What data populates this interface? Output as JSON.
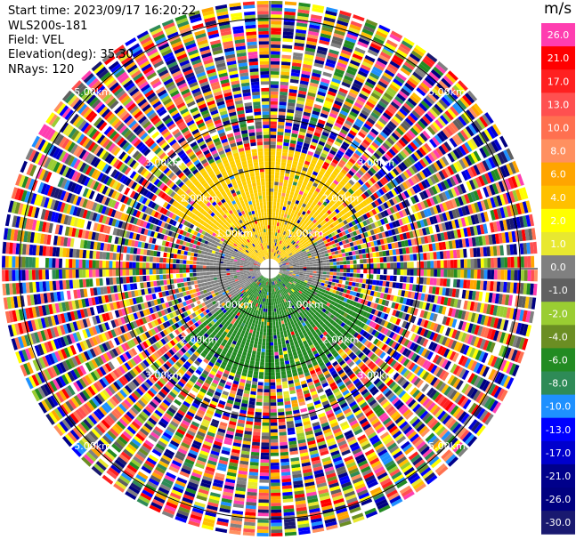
{
  "header": {
    "start_time": "Start time: 2023/09/17 16:20:22",
    "instrument": "WLS200s-181",
    "field": "Field: VEL",
    "elevation": "Elevation(deg): 35.30",
    "nrays": "NRays: 120"
  },
  "chart_data": {
    "type": "heatmap",
    "projection": "polar-ppi",
    "field": "VEL",
    "units": "m/s",
    "n_rays": 120,
    "elevation_deg": 35.3,
    "range_rings_km": [
      1.0,
      2.0,
      3.0,
      5.0
    ],
    "range_ring_labels": [
      "1.00km",
      "2.00km",
      "3.00km",
      "5.00km"
    ],
    "colorbar": {
      "label": "m/s",
      "ticks": [
        "26.0",
        "21.0",
        "17.0",
        "13.0",
        "10.0",
        "8.0",
        "6.0",
        "4.0",
        "2.0",
        "1.0",
        "0.0",
        "-1.0",
        "-2.0",
        "-4.0",
        "-6.0",
        "-8.0",
        "-10.0",
        "-13.0",
        "-17.0",
        "-21.0",
        "-26.0",
        "-30.0"
      ],
      "colors": [
        "#ff3eb0",
        "#ff0000",
        "#ff2020",
        "#ff5050",
        "#ff7050",
        "#ff9060",
        "#ffa500",
        "#ffc000",
        "#ffff00",
        "#e8e830",
        "#808080",
        "#606060",
        "#9acd32",
        "#6b8e23",
        "#228b22",
        "#2e8b57",
        "#1e90ff",
        "#0000ff",
        "#0000cd",
        "#00008b",
        "#000080",
        "#191970"
      ]
    },
    "sectors": [
      {
        "azimuth_deg": [
          300,
          60
        ],
        "range_km": [
          0.2,
          2.4
        ],
        "dominant_value": 1.0,
        "description_color": "#ffd000"
      },
      {
        "azimuth_deg": [
          60,
          110
        ],
        "range_km": [
          0.2,
          1.2
        ],
        "dominant_value": 0.0,
        "description_color": "#808080"
      },
      {
        "azimuth_deg": [
          110,
          230
        ],
        "range_km": [
          0.2,
          2.2
        ],
        "dominant_value": -4.0,
        "description_color": "#228b22"
      },
      {
        "azimuth_deg": [
          230,
          300
        ],
        "range_km": [
          0.2,
          1.5
        ],
        "dominant_value": -1.0,
        "description_color": "#808080"
      }
    ]
  }
}
